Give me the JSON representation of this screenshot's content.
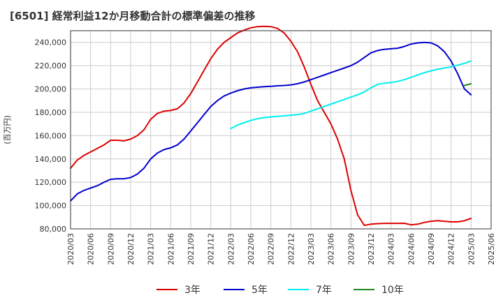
{
  "title": "[6501]  経常利益12か月移動合計の標準偏差の推移",
  "chart_data": {
    "type": "line",
    "title": "[6501]  経常利益12か月移動合計の標準偏差の推移",
    "xlabel": "",
    "ylabel": "(百万円)",
    "ylim": [
      80000,
      250000
    ],
    "yticks": [
      80000,
      100000,
      120000,
      140000,
      160000,
      180000,
      200000,
      220000,
      240000
    ],
    "ytick_labels": [
      "80,000",
      "100,000",
      "120,000",
      "140,000",
      "160,000",
      "180,000",
      "200,000",
      "220,000",
      "240,000"
    ],
    "xticks": [
      "2020/03",
      "2020/06",
      "2020/09",
      "2020/12",
      "2021/03",
      "2021/06",
      "2021/09",
      "2021/12",
      "2022/03",
      "2022/06",
      "2022/09",
      "2022/12",
      "2023/03",
      "2023/06",
      "2023/09",
      "2023/12",
      "2024/03",
      "2024/06",
      "2024/09",
      "2024/12",
      "2025/03",
      "2025/06"
    ],
    "grid": true,
    "legend_position": "bottom",
    "series": [
      {
        "name": "3年",
        "color": "#dd0000",
        "x": [
          "2020/03",
          "2020/04",
          "2020/05",
          "2020/06",
          "2020/07",
          "2020/08",
          "2020/09",
          "2020/10",
          "2020/11",
          "2020/12",
          "2021/01",
          "2021/02",
          "2021/03",
          "2021/04",
          "2021/05",
          "2021/06",
          "2021/07",
          "2021/08",
          "2021/09",
          "2021/10",
          "2021/11",
          "2021/12",
          "2022/01",
          "2022/02",
          "2022/03",
          "2022/04",
          "2022/05",
          "2022/06",
          "2022/07",
          "2022/08",
          "2022/09",
          "2022/10",
          "2022/11",
          "2022/12",
          "2023/01",
          "2023/02",
          "2023/03",
          "2023/04",
          "2023/05",
          "2023/06",
          "2023/07",
          "2023/08",
          "2023/09",
          "2023/10",
          "2023/11",
          "2023/12",
          "2024/01",
          "2024/02",
          "2024/03",
          "2024/04",
          "2024/05",
          "2024/06",
          "2024/07",
          "2024/08",
          "2024/09",
          "2024/10",
          "2024/11",
          "2024/12",
          "2025/01",
          "2025/02",
          "2025/03"
        ],
        "values": [
          132000,
          139000,
          143000,
          146000,
          149000,
          152000,
          156000,
          156000,
          155500,
          157000,
          160000,
          165000,
          174000,
          179000,
          181000,
          181500,
          183000,
          188000,
          196000,
          206000,
          216000,
          226000,
          234000,
          240000,
          244000,
          248000,
          250500,
          252500,
          253500,
          253800,
          253500,
          252000,
          248000,
          241000,
          232000,
          219000,
          204000,
          190000,
          180000,
          170000,
          157000,
          140000,
          113000,
          92000,
          83000,
          84000,
          84500,
          84700,
          84700,
          84700,
          84800,
          83500,
          84000,
          85500,
          86500,
          87000,
          86500,
          86000,
          86000,
          87000,
          89000
        ]
      },
      {
        "name": "5年",
        "color": "#0000cc",
        "x": [
          "2020/03",
          "2020/04",
          "2020/05",
          "2020/06",
          "2020/07",
          "2020/08",
          "2020/09",
          "2020/10",
          "2020/11",
          "2020/12",
          "2021/01",
          "2021/02",
          "2021/03",
          "2021/04",
          "2021/05",
          "2021/06",
          "2021/07",
          "2021/08",
          "2021/09",
          "2021/10",
          "2021/11",
          "2021/12",
          "2022/01",
          "2022/02",
          "2022/03",
          "2022/04",
          "2022/05",
          "2022/06",
          "2022/07",
          "2022/08",
          "2022/09",
          "2022/10",
          "2022/11",
          "2022/12",
          "2023/01",
          "2023/02",
          "2023/03",
          "2023/04",
          "2023/05",
          "2023/06",
          "2023/07",
          "2023/08",
          "2023/09",
          "2023/10",
          "2023/11",
          "2023/12",
          "2024/01",
          "2024/02",
          "2024/03",
          "2024/04",
          "2024/05",
          "2024/06",
          "2024/07",
          "2024/08",
          "2024/09",
          "2024/10",
          "2024/11",
          "2024/12",
          "2025/01",
          "2025/02",
          "2025/03"
        ],
        "values": [
          104000,
          110000,
          113000,
          115000,
          117000,
          120000,
          122500,
          123000,
          123000,
          124000,
          127000,
          132000,
          140000,
          145000,
          148000,
          149500,
          152000,
          157000,
          164000,
          171000,
          178000,
          185000,
          190000,
          194000,
          196500,
          198500,
          200000,
          201000,
          201500,
          202000,
          202300,
          202700,
          203000,
          203500,
          204500,
          206000,
          208000,
          210000,
          212000,
          214000,
          216000,
          218000,
          220000,
          223000,
          227000,
          231000,
          233000,
          234000,
          234500,
          235000,
          236500,
          238500,
          239500,
          240000,
          239500,
          237000,
          232000,
          224000,
          213000,
          200000,
          195000
        ]
      },
      {
        "name": "7年",
        "color": "#00eeee",
        "x": [
          "2022/03",
          "2022/04",
          "2022/05",
          "2022/06",
          "2022/07",
          "2022/08",
          "2022/09",
          "2022/10",
          "2022/11",
          "2022/12",
          "2023/01",
          "2023/02",
          "2023/03",
          "2023/04",
          "2023/05",
          "2023/06",
          "2023/07",
          "2023/08",
          "2023/09",
          "2023/10",
          "2023/11",
          "2023/12",
          "2024/01",
          "2024/02",
          "2024/03",
          "2024/04",
          "2024/05",
          "2024/06",
          "2024/07",
          "2024/08",
          "2024/09",
          "2024/10",
          "2024/11",
          "2024/12",
          "2025/01",
          "2025/02",
          "2025/03"
        ],
        "values": [
          166000,
          169000,
          171000,
          173000,
          174500,
          175500,
          176000,
          176500,
          177000,
          177500,
          178000,
          179000,
          181000,
          183000,
          185000,
          187000,
          189000,
          191000,
          193000,
          195000,
          197500,
          201000,
          204000,
          205000,
          205500,
          206500,
          208000,
          210000,
          212000,
          214000,
          215500,
          217000,
          218000,
          219000,
          220500,
          222000,
          224000
        ]
      },
      {
        "name": "10年",
        "color": "#228822",
        "x": [
          "2025/02",
          "2025/03"
        ],
        "values": [
          203000,
          204500
        ]
      }
    ]
  }
}
